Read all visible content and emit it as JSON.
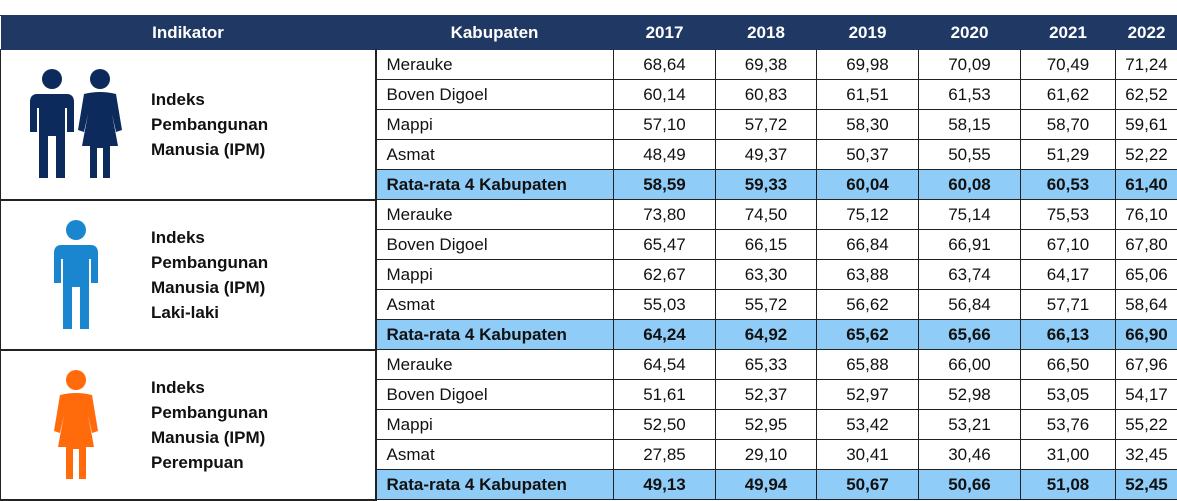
{
  "table": {
    "headers": [
      "Indikator",
      "Kabupaten",
      "2017",
      "2018",
      "2019",
      "2020",
      "2021",
      "2022"
    ],
    "groups": [
      {
        "indicator_lines": [
          "Indeks",
          "Pembangunan",
          "Manusia (IPM)"
        ],
        "rows": [
          [
            "Merauke",
            "68,64",
            "69,38",
            "69,98",
            "70,09",
            "70,49",
            "71,24"
          ],
          [
            "Boven Digoel",
            "60,14",
            "60,83",
            "61,51",
            "61,53",
            "61,62",
            "62,52"
          ],
          [
            "Mappi",
            "57,10",
            "57,72",
            "58,30",
            "58,15",
            "58,70",
            "59,61"
          ],
          [
            "Asmat",
            "48,49",
            "49,37",
            "50,37",
            "50,55",
            "51,29",
            "52,22"
          ],
          [
            "Rata-rata 4 Kabupaten",
            "58,59",
            "59,33",
            "60,04",
            "60,08",
            "60,53",
            "61,40"
          ]
        ]
      },
      {
        "indicator_lines": [
          "Indeks",
          "Pembangunan",
          "Manusia (IPM)",
          "Laki-laki"
        ],
        "rows": [
          [
            "Merauke",
            "73,80",
            "74,50",
            "75,12",
            "75,14",
            "75,53",
            "76,10"
          ],
          [
            "Boven Digoel",
            "65,47",
            "66,15",
            "66,84",
            "66,91",
            "67,10",
            "67,80"
          ],
          [
            "Mappi",
            "62,67",
            "63,30",
            "63,88",
            "63,74",
            "64,17",
            "65,06"
          ],
          [
            "Asmat",
            "55,03",
            "55,72",
            "56,62",
            "56,84",
            "57,71",
            "58,64"
          ],
          [
            "Rata-rata 4 Kabupaten",
            "64,24",
            "64,92",
            "65,62",
            "65,66",
            "66,13",
            "66,90"
          ]
        ]
      },
      {
        "indicator_lines": [
          "Indeks",
          "Pembangunan",
          "Manusia (IPM)",
          "Perempuan"
        ],
        "rows": [
          [
            "Merauke",
            "64,54",
            "65,33",
            "65,88",
            "66,00",
            "66,50",
            "67,96"
          ],
          [
            "Boven Digoel",
            "51,61",
            "52,37",
            "52,97",
            "52,98",
            "53,05",
            "54,17"
          ],
          [
            "Mappi",
            "52,50",
            "52,95",
            "53,42",
            "53,21",
            "53,76",
            "55,22"
          ],
          [
            "Asmat",
            "27,85",
            "29,10",
            "30,41",
            "30,46",
            "31,00",
            "32,45"
          ],
          [
            "Rata-rata 4 Kabupaten",
            "49,13",
            "49,94",
            "50,67",
            "50,66",
            "51,08",
            "52,45"
          ]
        ]
      }
    ]
  }
}
